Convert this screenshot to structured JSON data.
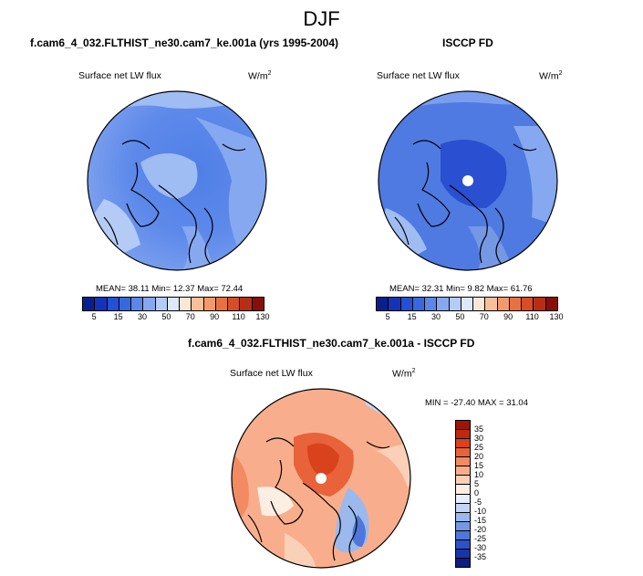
{
  "figure": {
    "season": "DJF"
  },
  "panels": {
    "top_left": {
      "title": "f.cam6_4_032.FLTHIST_ne30.cam7_ke.001a (yrs 1995-2004)",
      "field_label": "Surface net LW flux",
      "units": "W/m",
      "units_exp": "2",
      "stats": "MEAN=  38.11  Min=  12.37  Max=  72.44"
    },
    "top_right": {
      "title": "ISCCP FD",
      "field_label": "Surface net LW flux",
      "units": "W/m",
      "units_exp": "2",
      "stats": "MEAN=  32.31  Min=   9.82  Max=  61.76"
    },
    "bottom": {
      "title": "f.cam6_4_032.FLTHIST_ne30.cam7_ke.001a - ISCCP FD",
      "field_label": "Surface net LW flux",
      "units": "W/m",
      "units_exp": "2",
      "stats": "MIN = -27.40 MAX =  31.04"
    }
  },
  "chart_data": [
    {
      "type": "heatmap",
      "title": "f.cam6_4_032.FLTHIST_ne30.cam7_ke.001a (yrs 1995-2004)",
      "subtitle": "Surface net LW flux",
      "projection": "north polar stereographic",
      "units": "W/m2",
      "mean": 38.11,
      "min": 12.37,
      "max": 72.44,
      "colorbar": {
        "ticks": [
          "5",
          "15",
          "30",
          "50",
          "70",
          "90",
          "110",
          "130"
        ],
        "colors": [
          "#0a1f8f",
          "#1533b8",
          "#2450d6",
          "#3868e0",
          "#5c86e8",
          "#86a8f0",
          "#b3cbf5",
          "#dde8fb",
          "#fbe6d4",
          "#f8c09a",
          "#f39a6a",
          "#e8723f",
          "#d64e24",
          "#b82e14",
          "#8a0e08"
        ]
      }
    },
    {
      "type": "heatmap",
      "title": "ISCCP FD",
      "subtitle": "Surface net LW flux",
      "projection": "north polar stereographic",
      "units": "W/m2",
      "mean": 32.31,
      "min": 9.82,
      "max": 61.76,
      "colorbar": {
        "ticks": [
          "5",
          "15",
          "30",
          "50",
          "70",
          "90",
          "110",
          "130"
        ],
        "colors": [
          "#0a1f8f",
          "#1533b8",
          "#2450d6",
          "#3868e0",
          "#5c86e8",
          "#86a8f0",
          "#b3cbf5",
          "#dde8fb",
          "#fbe6d4",
          "#f8c09a",
          "#f39a6a",
          "#e8723f",
          "#d64e24",
          "#b82e14",
          "#8a0e08"
        ]
      }
    },
    {
      "type": "heatmap",
      "title": "f.cam6_4_032.FLTHIST_ne30.cam7_ke.001a - ISCCP FD",
      "subtitle": "Surface net LW flux",
      "projection": "north polar stereographic",
      "units": "W/m2",
      "min": -27.4,
      "max": 31.04,
      "colorbar": {
        "ticks": [
          "35",
          "30",
          "25",
          "20",
          "15",
          "10",
          "5",
          "0",
          "-5",
          "-10",
          "-15",
          "-20",
          "-25",
          "-30",
          "-35"
        ],
        "colors": [
          "#9e1408",
          "#c0270f",
          "#d8421d",
          "#e8623a",
          "#f28a62",
          "#f8ae8c",
          "#fbd0b8",
          "#fdeee3",
          "#e6eefb",
          "#c3d5f5",
          "#9cb9ee",
          "#7598e5",
          "#4f76da",
          "#2d52c6",
          "#1a34a6",
          "#0d1c80"
        ]
      }
    }
  ]
}
